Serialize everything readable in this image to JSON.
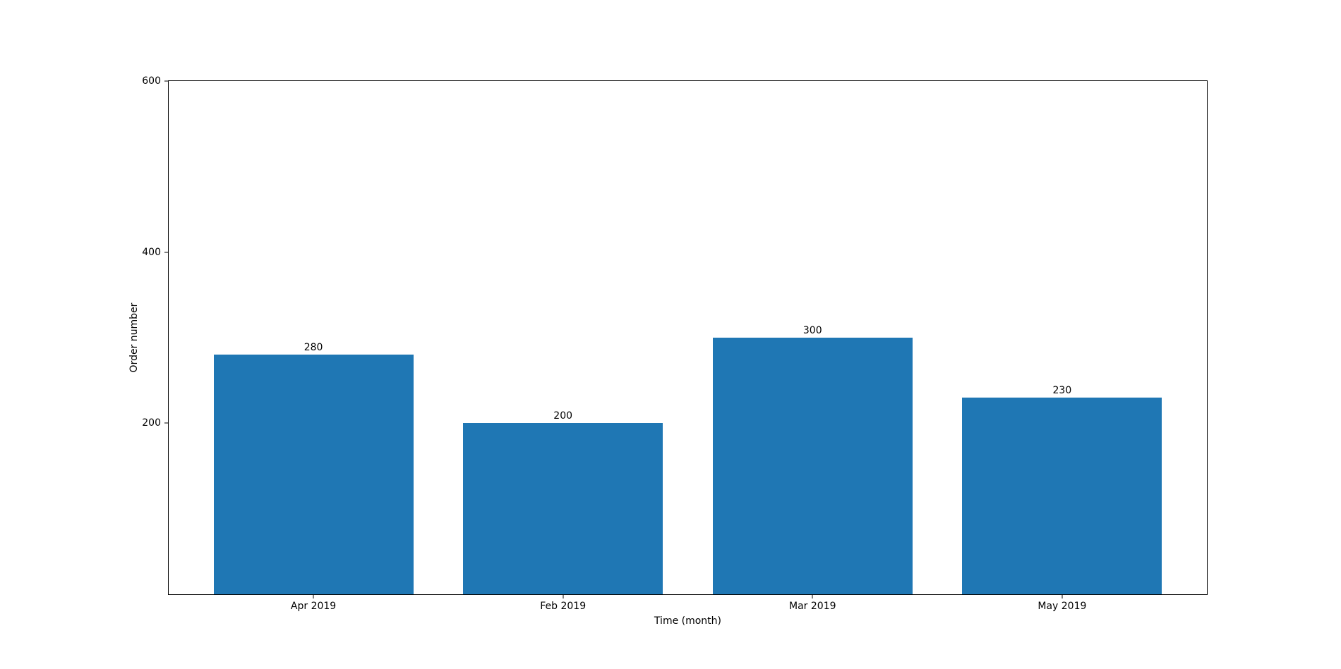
{
  "chart_data": {
    "type": "bar",
    "title": "",
    "xlabel": "Time (month)",
    "ylabel": "Order number",
    "categories": [
      "Apr 2019",
      "Feb 2019",
      "Mar 2019",
      "May 2019"
    ],
    "values": [
      280,
      200,
      300,
      230
    ],
    "bar_value_labels": [
      "280",
      "200",
      "300",
      "230"
    ],
    "ylim": [
      0,
      600
    ],
    "yticks": [
      200,
      400,
      600
    ],
    "xlim": [
      -0.58,
      3.58
    ],
    "bar_width": 0.8,
    "bar_color": "#1f77b4",
    "background_color": "#ffffff",
    "spine_color": "#000000",
    "grid": false,
    "legend": null
  }
}
